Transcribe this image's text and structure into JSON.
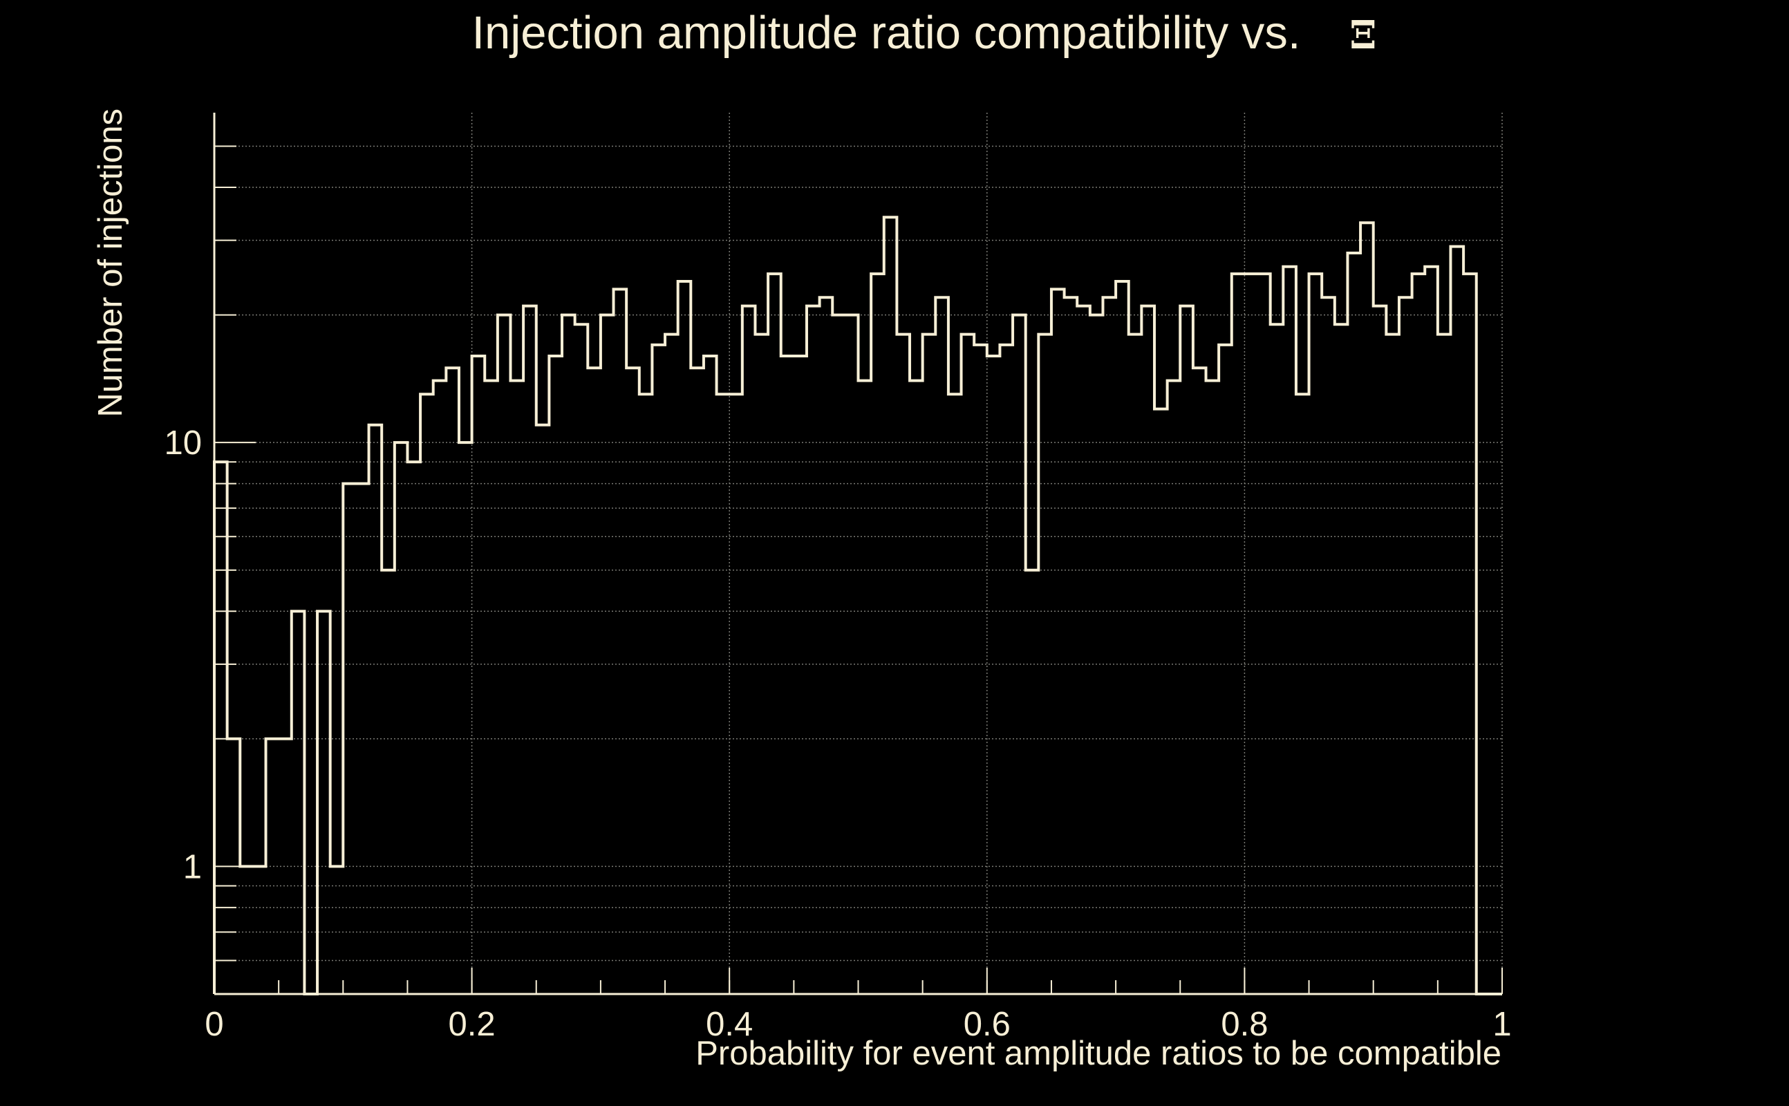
{
  "chart_data": {
    "type": "histogram",
    "title": "Injection amplitude ratio compatibility vs.",
    "title_symbol": "Ξ",
    "xlabel": "Probability for event amplitude ratios to be compatible",
    "ylabel": "Number of injections",
    "x_scale": "linear",
    "y_scale": "log",
    "xlim": [
      0,
      1
    ],
    "ylim": [
      0.5,
      60
    ],
    "x_ticks": [
      "0",
      "0.2",
      "0.4",
      "0.6",
      "0.8",
      "1"
    ],
    "x_tick_values": [
      0,
      0.2,
      0.4,
      0.6,
      0.8,
      1
    ],
    "y_ticks": [
      "1",
      "10"
    ],
    "y_tick_values": [
      1,
      10
    ],
    "grid": true,
    "bin_width": 0.01,
    "x_start": 0,
    "values": [
      9,
      2,
      1,
      1,
      2,
      2,
      4,
      0,
      4,
      1,
      8,
      8,
      11,
      5,
      10,
      9,
      13,
      14,
      15,
      10,
      16,
      14,
      20,
      14,
      21,
      11,
      16,
      20,
      19,
      15,
      20,
      23,
      15,
      13,
      17,
      18,
      24,
      15,
      16,
      13,
      13,
      21,
      18,
      25,
      16,
      16,
      21,
      22,
      20,
      20,
      14,
      25,
      34,
      18,
      14,
      18,
      22,
      13,
      18,
      17,
      16,
      17,
      20,
      5,
      18,
      23,
      22,
      21,
      20,
      22,
      24,
      18,
      21,
      12,
      14,
      21,
      15,
      14,
      17,
      25,
      25,
      25,
      19,
      26,
      13,
      25,
      22,
      19,
      28,
      33,
      21,
      18,
      22,
      25,
      26,
      18,
      29,
      25
    ]
  },
  "colors": {
    "background": "#000000",
    "foreground": "#f7efd6",
    "grid": "#7a7a74"
  }
}
